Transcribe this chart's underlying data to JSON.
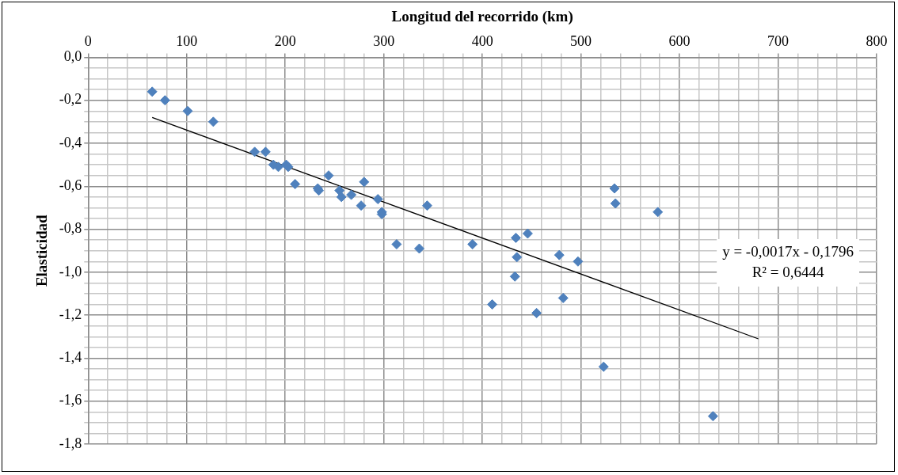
{
  "chart_data": {
    "type": "scatter",
    "xlabel": "Longitud del recorrido (km)",
    "ylabel": "Elasticidad",
    "xlim": [
      0,
      800
    ],
    "xticks": [
      0,
      {
        "value": 20,
        "label": null
      },
      {
        "value": 40,
        "label": null
      },
      {
        "value": 60,
        "label": null
      },
      {
        "value": 80,
        "label": null
      },
      100,
      {
        "value": 120,
        "label": null
      },
      {
        "value": 140,
        "label": null
      },
      {
        "value": 160,
        "label": null
      },
      {
        "value": 180,
        "label": null
      },
      200,
      {
        "value": 220,
        "label": null
      },
      {
        "value": 240,
        "label": null
      },
      {
        "value": 260,
        "label": null
      },
      {
        "value": 280,
        "label": null
      },
      300,
      {
        "value": 320,
        "label": null
      },
      {
        "value": 340,
        "label": null
      },
      {
        "value": 360,
        "label": null
      },
      {
        "value": 380,
        "label": null
      },
      400,
      {
        "value": 420,
        "label": null
      },
      {
        "value": 440,
        "label": null
      },
      {
        "value": 460,
        "label": null
      },
      {
        "value": 480,
        "label": null
      },
      500,
      {
        "value": 520,
        "label": null
      },
      {
        "value": 540,
        "label": null
      },
      {
        "value": 560,
        "label": null
      },
      {
        "value": 580,
        "label": null
      },
      600,
      {
        "value": 620,
        "label": null
      },
      {
        "value": 640,
        "label": null
      },
      {
        "value": 660,
        "label": null
      },
      {
        "value": 680,
        "label": null
      },
      700,
      {
        "value": 720,
        "label": null
      },
      {
        "value": 740,
        "label": null
      },
      {
        "value": 760,
        "label": null
      },
      {
        "value": 780,
        "label": null
      },
      800
    ],
    "ylim": [
      -1.8,
      0
    ],
    "yticks": [
      {
        "value": 0,
        "label": "0,0"
      },
      {
        "value": -0.05,
        "label": null
      },
      {
        "value": -0.1,
        "label": null
      },
      {
        "value": -0.15,
        "label": null
      },
      {
        "value": -0.2,
        "label": "-0,2"
      },
      {
        "value": -0.25,
        "label": null
      },
      {
        "value": -0.3,
        "label": null
      },
      {
        "value": -0.35,
        "label": null
      },
      {
        "value": -0.4,
        "label": "-0,4"
      },
      {
        "value": -0.45,
        "label": null
      },
      {
        "value": -0.5,
        "label": null
      },
      {
        "value": -0.55,
        "label": null
      },
      {
        "value": -0.6,
        "label": "-0,6"
      },
      {
        "value": -0.65,
        "label": null
      },
      {
        "value": -0.7,
        "label": null
      },
      {
        "value": -0.75,
        "label": null
      },
      {
        "value": -0.8,
        "label": "-0,8"
      },
      {
        "value": -0.85,
        "label": null
      },
      {
        "value": -0.9,
        "label": null
      },
      {
        "value": -0.95,
        "label": null
      },
      {
        "value": -1.0,
        "label": "-1,0"
      },
      {
        "value": -1.05,
        "label": null
      },
      {
        "value": -1.1,
        "label": null
      },
      {
        "value": -1.15,
        "label": null
      },
      {
        "value": -1.2,
        "label": "-1,2"
      },
      {
        "value": -1.25,
        "label": null
      },
      {
        "value": -1.3,
        "label": null
      },
      {
        "value": -1.35,
        "label": null
      },
      {
        "value": -1.4,
        "label": "-1,4"
      },
      {
        "value": -1.45,
        "label": null
      },
      {
        "value": -1.5,
        "label": null
      },
      {
        "value": -1.55,
        "label": null
      },
      {
        "value": -1.6,
        "label": "-1,6"
      },
      {
        "value": -1.65,
        "label": null
      },
      {
        "value": -1.7,
        "label": null
      },
      {
        "value": -1.75,
        "label": null
      },
      {
        "value": -1.8,
        "label": "-1,8"
      }
    ],
    "grid": true,
    "legend": false,
    "marker": "diamond",
    "annotations": [
      "y = -0,0017x - 0,1796",
      "R² = 0,6444"
    ],
    "series": [
      {
        "color": "#4f81bd",
        "x": [
          65,
          78,
          101,
          127,
          169,
          180,
          188,
          193,
          201,
          203,
          210,
          233,
          234,
          244,
          255,
          257,
          267,
          277,
          280,
          294,
          298,
          298,
          313,
          336,
          344,
          390,
          410,
          434,
          433,
          435,
          446,
          455,
          478,
          482,
          497,
          523,
          534,
          535,
          578,
          634
        ],
        "values": [
          -0.16,
          -0.2,
          -0.25,
          -0.3,
          -0.44,
          -0.44,
          -0.5,
          -0.51,
          -0.5,
          -0.51,
          -0.59,
          -0.61,
          -0.62,
          -0.55,
          -0.62,
          -0.65,
          -0.64,
          -0.69,
          -0.58,
          -0.66,
          -0.72,
          -0.73,
          -0.87,
          -0.89,
          -0.69,
          -0.87,
          -1.15,
          -0.84,
          -1.02,
          -0.93,
          -0.82,
          -1.19,
          -0.92,
          -1.12,
          -0.95,
          -1.44,
          -0.61,
          -0.68,
          -0.72,
          -1.67
        ]
      },
      {
        "type": "line",
        "color": "#000000",
        "marker": "none",
        "line_style": "solid",
        "x": [
          65,
          680
        ],
        "values": [
          -0.28,
          -1.31
        ]
      }
    ]
  }
}
